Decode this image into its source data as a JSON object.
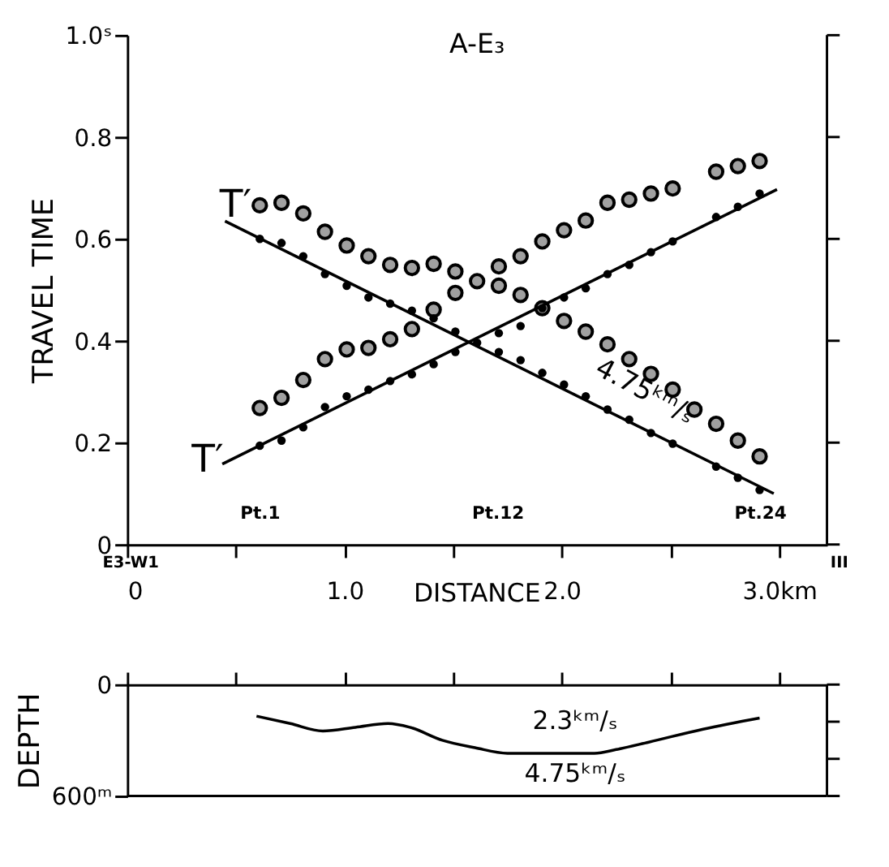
{
  "chart_data": [
    {
      "type": "scatter",
      "title": "A-E₃",
      "xlabel": "DISTANCE",
      "ylabel": "TRAVEL TIME",
      "x": [
        0.61,
        0.71,
        0.81,
        0.91,
        1.01,
        1.11,
        1.21,
        1.31,
        1.41,
        1.51,
        1.61,
        1.71,
        1.81,
        1.91,
        2.01,
        2.11,
        2.21,
        2.31,
        2.41,
        2.51,
        2.61,
        2.71,
        2.81,
        2.91
      ],
      "series": [
        {
          "color": "#a0a0a0",
          "marker": "circle",
          "values": [
            0.666,
            0.671,
            0.65,
            0.614,
            0.587,
            0.566,
            0.549,
            0.543,
            0.551,
            0.536,
            0.517,
            0.508,
            0.49,
            0.464,
            0.439,
            0.418,
            0.393,
            0.364,
            0.335,
            0.304,
            0.265,
            0.237,
            0.204,
            0.173
          ]
        },
        {
          "color": "#a0a0a0",
          "marker": "circle",
          "values": [
            0.268,
            0.288,
            0.323,
            0.364,
            0.383,
            0.386,
            0.403,
            0.423,
            0.461,
            0.494,
            null,
            0.546,
            0.566,
            0.595,
            0.617,
            0.636,
            0.671,
            0.677,
            0.689,
            0.699,
            null,
            0.732,
            0.743,
            0.753
          ]
        },
        {
          "color": "#000000",
          "marker": "circle",
          "values": [
            0.6,
            0.592,
            0.566,
            0.531,
            0.508,
            0.485,
            0.473,
            0.459,
            0.444,
            0.418,
            0.396,
            0.378,
            0.362,
            0.337,
            0.314,
            0.291,
            0.265,
            0.245,
            0.219,
            0.198,
            null,
            0.153,
            0.131,
            0.107
          ]
        },
        {
          "color": "#000000",
          "marker": "circle",
          "values": [
            0.194,
            0.204,
            0.23,
            0.27,
            0.291,
            0.304,
            0.321,
            0.334,
            0.354,
            0.378,
            null,
            0.415,
            0.429,
            0.464,
            0.485,
            0.503,
            0.531,
            0.549,
            0.574,
            0.595,
            null,
            0.643,
            0.663,
            0.689
          ]
        },
        {
          "type": "line",
          "color": "#000000",
          "line_style": "solid",
          "x": [
            0.45,
            2.975
          ],
          "values": [
            0.635,
            0.1
          ]
        },
        {
          "type": "line",
          "color": "#000000",
          "line_style": "solid",
          "x": [
            0.4375,
            2.99
          ],
          "values": [
            0.158,
            0.697
          ]
        }
      ],
      "xlim": [
        0,
        3.22
      ],
      "ylim": [
        0,
        1.0
      ],
      "xticks": [
        0,
        {
          "value": 0.5,
          "label": null
        },
        {
          "value": 1.0,
          "label": "1.0"
        },
        {
          "value": 1.5,
          "label": null
        },
        {
          "value": 2.0,
          "label": "2.0"
        },
        {
          "value": 2.5,
          "label": null
        },
        {
          "value": 3.0,
          "label": "3.0km"
        }
      ],
      "yticks": [
        0,
        {
          "value": 0.2,
          "label": "0.2"
        },
        {
          "value": 0.4,
          "label": "0.4"
        },
        {
          "value": 0.6,
          "label": "0.6"
        },
        {
          "value": 0.8,
          "label": "0.8"
        },
        {
          "value": 1.0,
          "label": "1.0ˢ"
        }
      ],
      "grid": false,
      "annotations": [
        "T′",
        "T′",
        "4.75ᵏᵐ/ₛ",
        "Pt.1",
        "Pt.12",
        "Pt.24",
        "E3-W1",
        "III"
      ]
    },
    {
      "type": "line",
      "ylabel": "DEPTH",
      "x": [
        0.595,
        0.75,
        0.9,
        1.05,
        1.2,
        1.3,
        1.45,
        1.6,
        1.75,
        1.9,
        2.15,
        2.25,
        2.4,
        2.65,
        2.91
      ],
      "values": [
        170,
        210,
        250,
        230,
        210,
        230,
        300,
        340,
        370,
        370,
        370,
        350,
        310,
        240,
        180
      ],
      "color": "#000000",
      "line_style": "solid",
      "xlim": [
        0,
        3.22
      ],
      "ylim": [
        600,
        0
      ],
      "xticks": [
        {
          "value": 0,
          "label": null
        },
        {
          "value": 0.5,
          "label": null
        },
        {
          "value": 1.0,
          "label": null
        },
        {
          "value": 1.5,
          "label": null
        },
        {
          "value": 2.0,
          "label": null
        },
        {
          "value": 2.5,
          "label": null
        },
        {
          "value": 3.0,
          "label": null
        }
      ],
      "yticks": [
        0,
        {
          "value": 200,
          "label": null
        },
        {
          "value": 400,
          "label": null
        },
        {
          "value": 600,
          "label": "600ᵐ"
        }
      ],
      "tick_labels": "y",
      "grid": false,
      "annotations": [
        "2.3ᵏᵐ/ₛ",
        "4.75ᵏᵐ/ₛ"
      ]
    }
  ]
}
